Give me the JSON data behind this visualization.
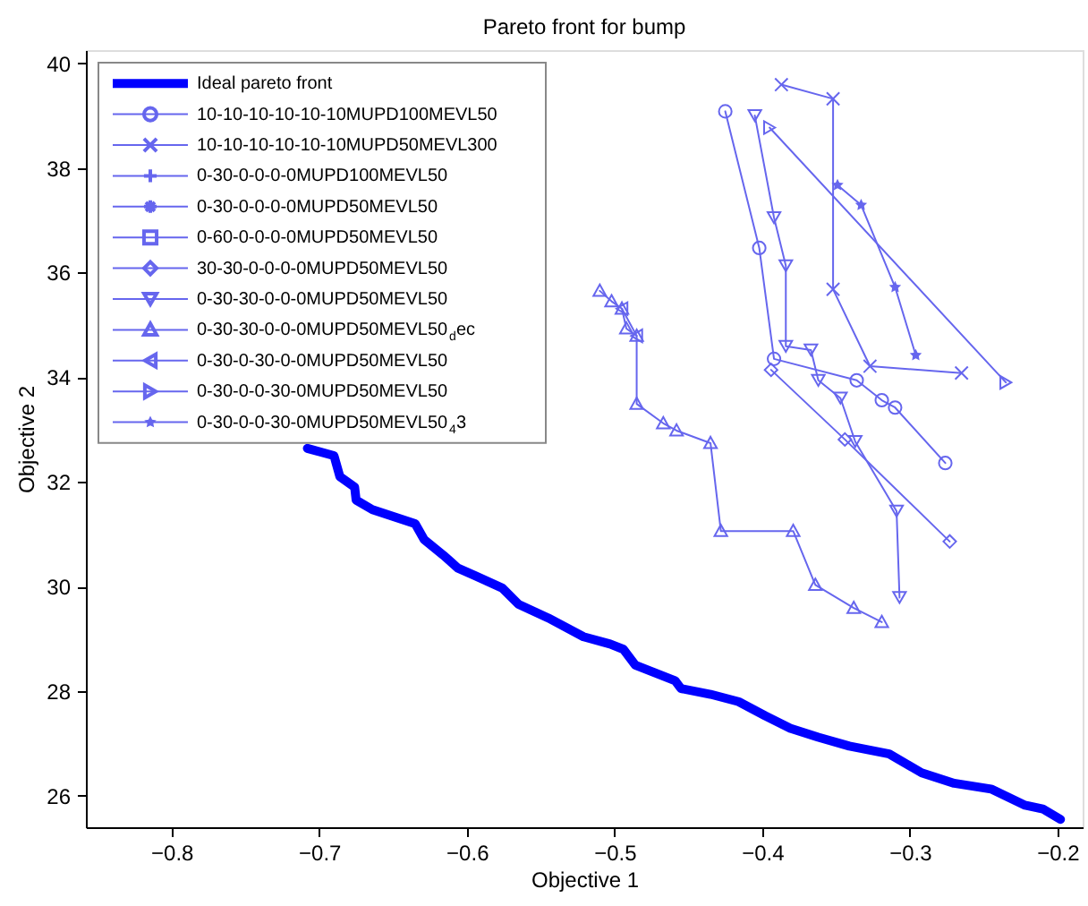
{
  "chart_data": {
    "type": "line",
    "title": "Pareto front for bump",
    "xlabel": "Objective 1",
    "ylabel": "Objective 2",
    "xlim": [
      -0.858,
      -0.183
    ],
    "ylim": [
      25.4,
      40.25
    ],
    "xticks": [
      -0.8,
      -0.7,
      -0.6,
      -0.5,
      -0.4,
      -0.3,
      -0.2
    ],
    "yticks": [
      26,
      28,
      30,
      32,
      34,
      36,
      38,
      40
    ],
    "grid": false,
    "legend": "top left",
    "series": [
      {
        "name": "Ideal pareto front",
        "color": "#0000ff",
        "marker": "none",
        "x": [
          -0.708,
          -0.69,
          -0.686,
          -0.676,
          -0.675,
          -0.664,
          -0.635,
          -0.629,
          -0.616,
          -0.606,
          -0.594,
          -0.576,
          -0.565,
          -0.545,
          -0.521,
          -0.503,
          -0.494,
          -0.486,
          -0.459,
          -0.455,
          -0.435,
          -0.416,
          -0.398,
          -0.381,
          -0.362,
          -0.341,
          -0.314,
          -0.292,
          -0.27,
          -0.245,
          -0.222,
          -0.21,
          -0.198
        ],
        "values": [
          32.64,
          32.5,
          32.1,
          31.9,
          31.65,
          31.47,
          31.2,
          30.9,
          30.6,
          30.35,
          30.2,
          29.97,
          29.66,
          29.4,
          29.04,
          28.9,
          28.8,
          28.5,
          28.2,
          28.05,
          27.94,
          27.8,
          27.53,
          27.29,
          27.12,
          26.95,
          26.8,
          26.44,
          26.24,
          26.13,
          25.82,
          25.75,
          25.55
        ]
      },
      {
        "name": "10-10-10-10-10-10MUPD100MEVL50",
        "color": "#6666ee",
        "marker": "circle",
        "x": [
          -0.425,
          -0.402,
          -0.392,
          -0.336,
          -0.319,
          -0.31,
          -0.276
        ],
        "values": [
          39.08,
          36.47,
          34.35,
          33.94,
          33.56,
          33.42,
          32.36
        ]
      },
      {
        "name": "10-10-10-10-10-10MUPD50MEVL300",
        "color": "#6666ee",
        "marker": "cross",
        "x": [
          -0.387,
          -0.352,
          -0.352,
          -0.327,
          -0.265
        ],
        "values": [
          39.59,
          39.32,
          35.68,
          34.21,
          34.08
        ]
      },
      {
        "name": "0-30-0-0-0-0MUPD100MEVL50",
        "color": "#6666ee",
        "marker": "plus"
      },
      {
        "name": "0-30-0-0-0-0MUPD50MEVL50",
        "color": "#6666ee",
        "marker": "asterisk"
      },
      {
        "name": "0-60-0-0-0-0MUPD50MEVL50",
        "color": "#6666ee",
        "marker": "square"
      },
      {
        "name": "30-30-0-0-0-0MUPD50MEVL50",
        "color": "#6666ee",
        "marker": "diamond",
        "x": [
          -0.394,
          -0.344,
          -0.273
        ],
        "values": [
          34.14,
          32.81,
          30.86
        ]
      },
      {
        "name": "0-30-30-0-0-0MUPD50MEVL50",
        "color": "#6666ee",
        "marker": "triangle-down",
        "x": [
          -0.405,
          -0.392,
          -0.384,
          -0.384,
          -0.367,
          -0.362,
          -0.347,
          -0.337,
          -0.309,
          -0.307
        ],
        "values": [
          39.0,
          37.05,
          36.13,
          34.59,
          34.52,
          33.94,
          33.6,
          32.77,
          31.44,
          29.79
        ]
      },
      {
        "name": "0-30-30-0-0-0MUPD50MEVL50$_{d}$ec",
        "color": "#6666ee",
        "marker": "triangle-up",
        "x": [
          -0.51,
          -0.502,
          -0.495,
          -0.492,
          -0.485,
          -0.485,
          -0.467,
          -0.458,
          -0.435,
          -0.428,
          -0.379,
          -0.364,
          -0.338,
          -0.319
        ],
        "values": [
          35.65,
          35.45,
          35.31,
          34.93,
          34.79,
          33.49,
          33.12,
          32.98,
          32.74,
          31.06,
          31.06,
          30.03,
          29.59,
          29.32
        ]
      },
      {
        "name": "0-30-0-30-0-0MUPD50MEVL50",
        "color": "#6666ee",
        "marker": "triangle-left",
        "x": [
          -0.495,
          -0.485
        ],
        "values": [
          35.31,
          34.79
        ]
      },
      {
        "name": "0-30-0-0-30-0MUPD50MEVL50",
        "color": "#6666ee",
        "marker": "triangle-right",
        "x": [
          -0.395,
          -0.235
        ],
        "values": [
          38.77,
          33.9
        ]
      },
      {
        "name": "0-30-0-0-30-0MUPD50MEVL50$_{4}$3",
        "color": "#6666ee",
        "marker": "star",
        "x": [
          -0.349,
          -0.333,
          -0.31,
          -0.296
        ],
        "values": [
          37.67,
          37.29,
          35.72,
          34.42
        ]
      }
    ]
  }
}
